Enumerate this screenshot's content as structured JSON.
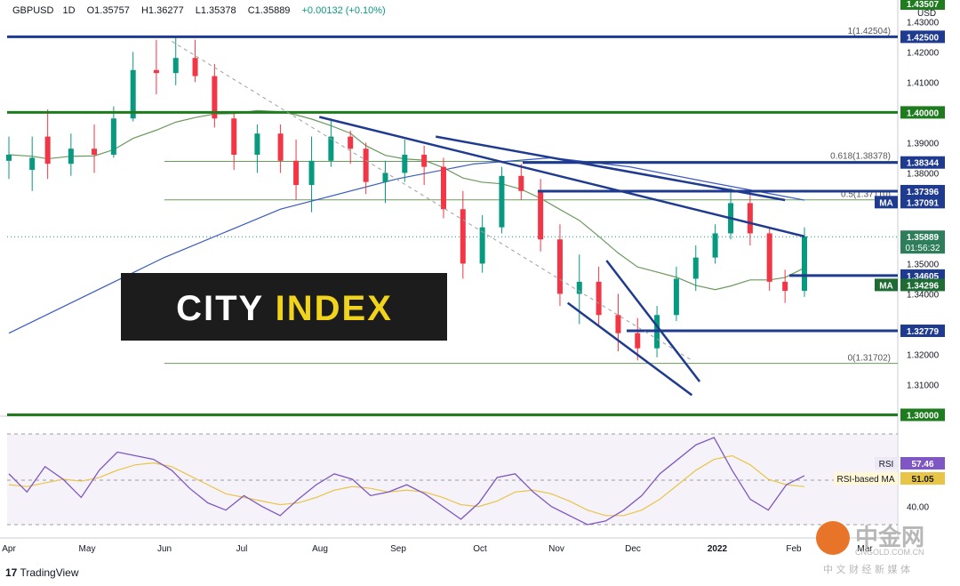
{
  "header": {
    "symbol": "GBPUSD",
    "interval": "1D",
    "open": "O1.35757",
    "high": "H1.36277",
    "low": "L1.35378",
    "close": "C1.35889",
    "change": "+0.00132 (+0.10%)"
  },
  "currency": "USD",
  "watermark_brand": "CITY INDEX",
  "tradingview": "TradingView",
  "zhongjin": {
    "name": "中金网",
    "url": "CNGOLD.COM.CN",
    "tagline": "中 文 财 经 新 媒 体"
  },
  "colors": {
    "up": "#089981",
    "down": "#f23645",
    "trend": "#1f3b8f",
    "level": "#1e7b1e",
    "sma": "#6b9a5e",
    "sma200": "#3a5bbf",
    "rsi": "#7e57c2",
    "rsi_ma": "#e8c547"
  },
  "chart_data": [
    {
      "type": "candlestick",
      "title": "GBPUSD, 1D",
      "x_tick_labels": [
        "Apr",
        "May",
        "Jun",
        "Jul",
        "Aug",
        "Sep",
        "Oct",
        "Nov",
        "Dec",
        "2022",
        "Feb",
        "Mar"
      ],
      "y_tick_labels": [
        "1.43000",
        "1.42000",
        "1.41000",
        "1.39000",
        "1.38000",
        "1.35000",
        "1.34000",
        "1.32000",
        "1.31000"
      ],
      "ylim": [
        1.3025,
        1.4354
      ],
      "grid": false,
      "price_labels": [
        {
          "value": "1.43507",
          "role": "top"
        },
        {
          "value": "1.42500",
          "role": "resistance"
        },
        {
          "value": "1.40000",
          "role": "resistance"
        },
        {
          "value": "1.38344",
          "role": "resistance"
        },
        {
          "value": "1.37396",
          "role": "resistance"
        },
        {
          "value": "1.37091",
          "role": "ma",
          "tag": "MA"
        },
        {
          "value": "1.35889",
          "role": "last",
          "timer": "01:56:32"
        },
        {
          "value": "1.34605",
          "role": "support"
        },
        {
          "value": "1.34296",
          "role": "ma",
          "tag": "MA"
        },
        {
          "value": "1.32779",
          "role": "support"
        },
        {
          "value": "1.30000",
          "role": "support"
        }
      ],
      "fibonacci": [
        {
          "label": "1(1.42504)",
          "level": 1.42504
        },
        {
          "label": "0.618(1.38378)",
          "level": 1.38378
        },
        {
          "label": "0.5(1.37110)",
          "level": 1.3711
        },
        {
          "label": "0(1.31702)",
          "level": 1.31702
        }
      ],
      "horizontal_levels": [
        1.425,
        1.4,
        1.38344,
        1.37396,
        1.34605,
        1.32779,
        1.3
      ],
      "candles_approx": [
        {
          "t": 0,
          "o": 1.384,
          "h": 1.392,
          "l": 1.378,
          "c": 1.386
        },
        {
          "t": 6,
          "o": 1.381,
          "h": 1.392,
          "l": 1.374,
          "c": 1.385
        },
        {
          "t": 10,
          "o": 1.392,
          "h": 1.401,
          "l": 1.378,
          "c": 1.383
        },
        {
          "t": 16,
          "o": 1.383,
          "h": 1.393,
          "l": 1.379,
          "c": 1.388
        },
        {
          "t": 22,
          "o": 1.388,
          "h": 1.396,
          "l": 1.38,
          "c": 1.386
        },
        {
          "t": 27,
          "o": 1.386,
          "h": 1.402,
          "l": 1.385,
          "c": 1.398
        },
        {
          "t": 32,
          "o": 1.398,
          "h": 1.42,
          "l": 1.397,
          "c": 1.414
        },
        {
          "t": 38,
          "o": 1.414,
          "h": 1.424,
          "l": 1.406,
          "c": 1.413
        },
        {
          "t": 43,
          "o": 1.413,
          "h": 1.425,
          "l": 1.409,
          "c": 1.418
        },
        {
          "t": 48,
          "o": 1.418,
          "h": 1.424,
          "l": 1.41,
          "c": 1.412
        },
        {
          "t": 53,
          "o": 1.412,
          "h": 1.416,
          "l": 1.395,
          "c": 1.398
        },
        {
          "t": 58,
          "o": 1.398,
          "h": 1.4,
          "l": 1.381,
          "c": 1.386
        },
        {
          "t": 64,
          "o": 1.386,
          "h": 1.396,
          "l": 1.38,
          "c": 1.393
        },
        {
          "t": 70,
          "o": 1.393,
          "h": 1.396,
          "l": 1.38,
          "c": 1.384
        },
        {
          "t": 74,
          "o": 1.384,
          "h": 1.391,
          "l": 1.371,
          "c": 1.376
        },
        {
          "t": 78,
          "o": 1.376,
          "h": 1.392,
          "l": 1.367,
          "c": 1.384
        },
        {
          "t": 83,
          "o": 1.384,
          "h": 1.398,
          "l": 1.382,
          "c": 1.392
        },
        {
          "t": 88,
          "o": 1.392,
          "h": 1.394,
          "l": 1.383,
          "c": 1.388
        },
        {
          "t": 92,
          "o": 1.388,
          "h": 1.39,
          "l": 1.373,
          "c": 1.377
        },
        {
          "t": 97,
          "o": 1.377,
          "h": 1.384,
          "l": 1.37,
          "c": 1.38
        },
        {
          "t": 102,
          "o": 1.38,
          "h": 1.391,
          "l": 1.377,
          "c": 1.386
        },
        {
          "t": 107,
          "o": 1.386,
          "h": 1.389,
          "l": 1.376,
          "c": 1.382
        },
        {
          "t": 112,
          "o": 1.382,
          "h": 1.385,
          "l": 1.365,
          "c": 1.368
        },
        {
          "t": 117,
          "o": 1.368,
          "h": 1.374,
          "l": 1.345,
          "c": 1.35
        },
        {
          "t": 122,
          "o": 1.35,
          "h": 1.366,
          "l": 1.347,
          "c": 1.362
        },
        {
          "t": 127,
          "o": 1.362,
          "h": 1.382,
          "l": 1.36,
          "c": 1.379
        },
        {
          "t": 132,
          "o": 1.379,
          "h": 1.383,
          "l": 1.371,
          "c": 1.374
        },
        {
          "t": 137,
          "o": 1.374,
          "h": 1.378,
          "l": 1.354,
          "c": 1.358
        },
        {
          "t": 142,
          "o": 1.358,
          "h": 1.363,
          "l": 1.336,
          "c": 1.34
        },
        {
          "t": 147,
          "o": 1.34,
          "h": 1.353,
          "l": 1.33,
          "c": 1.344
        },
        {
          "t": 152,
          "o": 1.344,
          "h": 1.349,
          "l": 1.329,
          "c": 1.333
        },
        {
          "t": 157,
          "o": 1.333,
          "h": 1.34,
          "l": 1.321,
          "c": 1.327
        },
        {
          "t": 162,
          "o": 1.327,
          "h": 1.332,
          "l": 1.318,
          "c": 1.322
        },
        {
          "t": 167,
          "o": 1.322,
          "h": 1.336,
          "l": 1.319,
          "c": 1.333
        },
        {
          "t": 172,
          "o": 1.333,
          "h": 1.349,
          "l": 1.331,
          "c": 1.345
        },
        {
          "t": 177,
          "o": 1.345,
          "h": 1.356,
          "l": 1.341,
          "c": 1.352
        },
        {
          "t": 182,
          "o": 1.352,
          "h": 1.363,
          "l": 1.35,
          "c": 1.36
        },
        {
          "t": 186,
          "o": 1.36,
          "h": 1.375,
          "l": 1.358,
          "c": 1.37
        },
        {
          "t": 191,
          "o": 1.37,
          "h": 1.373,
          "l": 1.356,
          "c": 1.36
        },
        {
          "t": 196,
          "o": 1.36,
          "h": 1.362,
          "l": 1.341,
          "c": 1.344
        },
        {
          "t": 200,
          "o": 1.344,
          "h": 1.348,
          "l": 1.337,
          "c": 1.341
        },
        {
          "t": 205,
          "o": 1.341,
          "h": 1.362,
          "l": 1.339,
          "c": 1.359
        }
      ]
    },
    {
      "type": "line",
      "title": "RSI",
      "y_tick_labels": [
        "40.00"
      ],
      "series": [
        {
          "name": "RSI",
          "last": "57.46"
        },
        {
          "name": "RSI-based MA",
          "last": "51.05"
        }
      ],
      "rsi_values": [
        58,
        48,
        62,
        55,
        45,
        60,
        70,
        68,
        66,
        60,
        50,
        42,
        38,
        46,
        40,
        35,
        44,
        52,
        58,
        55,
        46,
        48,
        52,
        47,
        40,
        33,
        42,
        56,
        58,
        48,
        40,
        35,
        30,
        32,
        38,
        46,
        58,
        66,
        74,
        78,
        60,
        44,
        38,
        52,
        57
      ],
      "ma_values": [
        52,
        51,
        53,
        55,
        54,
        56,
        60,
        63,
        64,
        62,
        57,
        52,
        47,
        45,
        43,
        41,
        42,
        45,
        49,
        51,
        50,
        48,
        49,
        48,
        45,
        41,
        40,
        43,
        48,
        49,
        47,
        43,
        38,
        35,
        35,
        38,
        44,
        52,
        60,
        66,
        68,
        63,
        55,
        52,
        51
      ]
    }
  ]
}
